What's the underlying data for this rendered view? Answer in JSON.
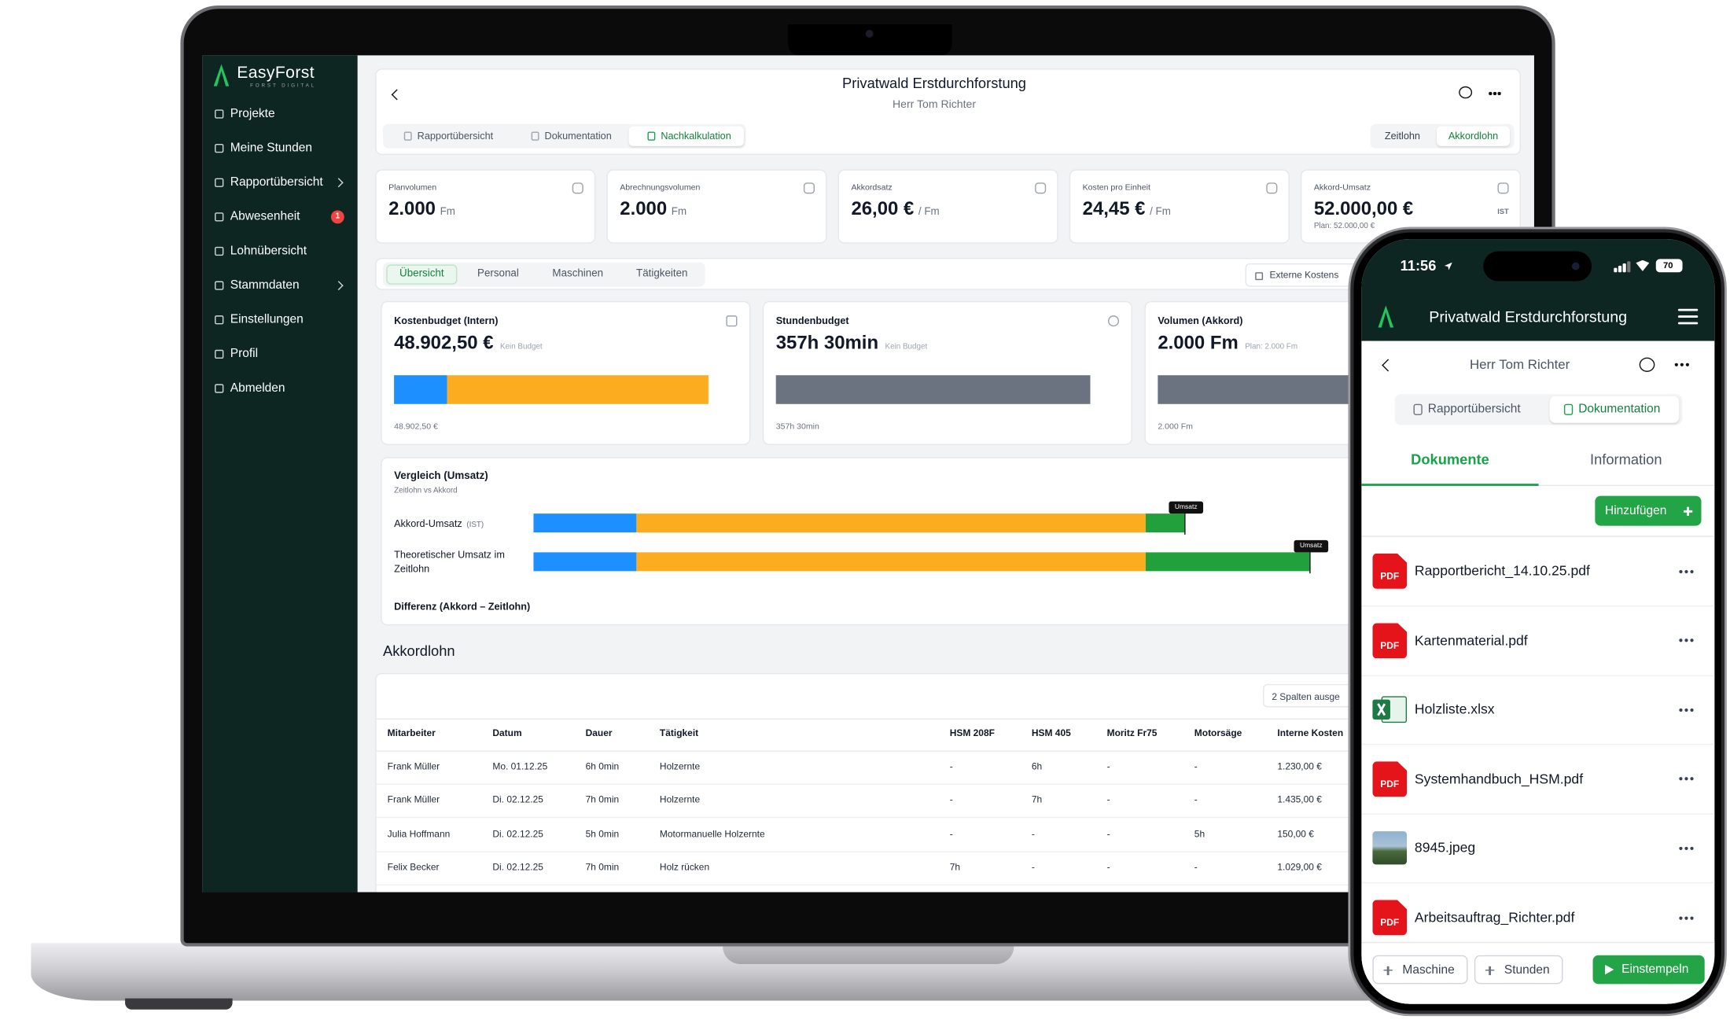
{
  "laptop": {
    "sidebar": {
      "brand": "EasyForst",
      "tagline": "FORST DIGITAL",
      "nav": [
        {
          "label": "Projekte"
        },
        {
          "label": "Meine Stunden"
        },
        {
          "label": "Rapportübersicht",
          "submenu": true
        },
        {
          "label": "Abwesenheit",
          "badge": "1"
        },
        {
          "label": "Lohnübersicht"
        },
        {
          "label": "Stammdaten",
          "submenu": true
        },
        {
          "label": "Einstellungen"
        },
        {
          "label": "Profil"
        },
        {
          "label": "Abmelden"
        }
      ]
    },
    "header": {
      "title": "Privatwald Erstdurchforstung",
      "subtitle": "Herr Tom Richter",
      "tabs": [
        "Rapportübersicht",
        "Dokumentation",
        "Nachkalkulation"
      ],
      "active_tab": 2,
      "toggle": [
        "Zeitlohn",
        "Akkordlohn"
      ],
      "active_toggle": 1
    },
    "kpis": [
      {
        "label": "Planvolumen",
        "value": "2.000",
        "unit": "Fm"
      },
      {
        "label": "Abrechnungsvolumen",
        "value": "2.000",
        "unit": "Fm"
      },
      {
        "label": "Akkordsatz",
        "value": "26,00 €",
        "unit": "/ Fm"
      },
      {
        "label": "Kosten pro Einheit",
        "value": "24,45 €",
        "unit": "/ Fm"
      },
      {
        "label": "Akkord-Umsatz",
        "value": "52.000,00 €",
        "tag": "IST",
        "note": "Plan: 52.000,00 €"
      }
    ],
    "subtabs": [
      "Übersicht",
      "Personal",
      "Maschinen",
      "Tätigkeiten"
    ],
    "external_button": "Externe Kostens",
    "budgets": [
      {
        "title": "Kostenbudget (Intern)",
        "value": "48.902,50 €",
        "note": "Kein Budget",
        "foot": "48.902,50 €"
      },
      {
        "title": "Stundenbudget",
        "value": "357h 30min",
        "note": "Kein Budget",
        "foot": "357h 30min"
      },
      {
        "title": "Volumen (Akkord)",
        "value": "2.000 Fm",
        "note": "Plan: 2.000 Fm",
        "foot": "2.000 Fm"
      }
    ],
    "comparison": {
      "title": "Vergleich (Umsatz)",
      "subtitle": "Zeitlohn vs Akkord",
      "rows": [
        {
          "label": "Akkord-Umsatz",
          "tag": "(IST)",
          "flag": "Umsatz"
        },
        {
          "label": "Theoretischer Umsatz im Zeitlohn",
          "flag": "Umsatz"
        }
      ],
      "footer": "Differenz (Akkord – Zeitlohn)"
    },
    "table": {
      "title": "Akkordlohn",
      "columns_button": "2 Spalten ausge",
      "headers": [
        "Mitarbeiter",
        "Datum",
        "Dauer",
        "Tätigkeit",
        "HSM 208F",
        "HSM 405",
        "Moritz Fr75",
        "Motorsäge",
        "Interne Kosten"
      ],
      "rows": [
        [
          "Frank Müller",
          "Mo. 01.12.25",
          "6h 0min",
          "Holzernte",
          "-",
          "6h",
          "-",
          "-",
          "1.230,00 €"
        ],
        [
          "Frank Müller",
          "Di. 02.12.25",
          "7h 0min",
          "Holzernte",
          "-",
          "7h",
          "-",
          "-",
          "1.435,00 €"
        ],
        [
          "Julia Hoffmann",
          "Di. 02.12.25",
          "5h 0min",
          "Motormanuelle Holzernte",
          "-",
          "-",
          "-",
          "5h",
          "150,00 €"
        ],
        [
          "Felix Becker",
          "Di. 02.12.25",
          "7h 0min",
          "Holz rücken",
          "7h",
          "-",
          "-",
          "-",
          "1.029,00 €"
        ]
      ]
    }
  },
  "phone": {
    "time": "11:56",
    "battery": "70",
    "title": "Privatwald Erstdurchforstung",
    "subtitle": "Herr Tom Richter",
    "tabs": [
      "Rapportübersicht",
      "Dokumentation"
    ],
    "active_tab": 1,
    "subtabs": [
      "Dokumente",
      "Information"
    ],
    "add_button": "Hinzufügen",
    "files": [
      {
        "name": "Rapportbericht_14.10.25.pdf",
        "kind": "pdf",
        "badge": "PDF"
      },
      {
        "name": "Kartenmaterial.pdf",
        "kind": "pdf",
        "badge": "PDF"
      },
      {
        "name": "Holzliste.xlsx",
        "kind": "excel"
      },
      {
        "name": "Systemhandbuch_HSM.pdf",
        "kind": "pdf",
        "badge": "PDF"
      },
      {
        "name": "8945.jpeg",
        "kind": "image"
      },
      {
        "name": "Arbeitsauftrag_Richter.pdf",
        "kind": "pdf",
        "badge": "PDF"
      }
    ],
    "footer_buttons": [
      "Maschine",
      "Stunden",
      "Einstempeln"
    ]
  }
}
